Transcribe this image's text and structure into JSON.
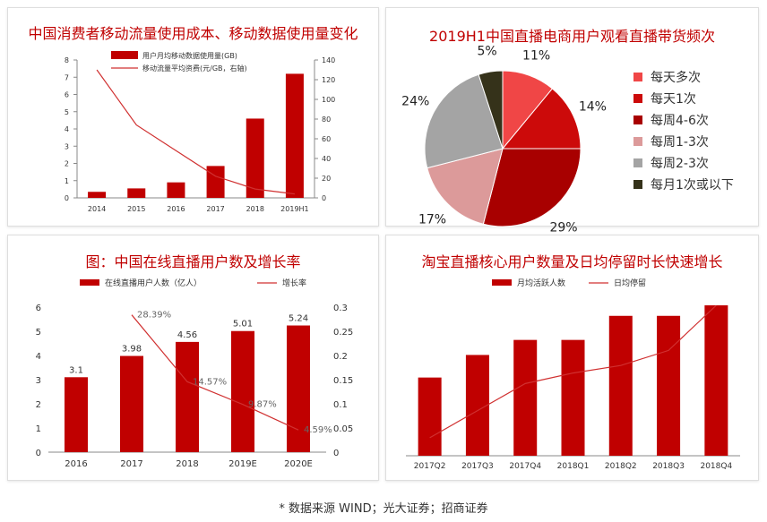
{
  "colors": {
    "red": "#c00000",
    "line": "#d03030",
    "axis": "#888888",
    "text": "#333333"
  },
  "source_note": "* 数据来源 WIND；光大证券；招商证券",
  "chart_data": [
    {
      "type": "bar",
      "title": "中国消费者移动流量使用成本、移动数据使用量变化",
      "categories": [
        "2014",
        "2015",
        "2016",
        "2017",
        "2018",
        "2019H1"
      ],
      "y_ticks": [
        "0",
        "1",
        "2",
        "3",
        "4",
        "5",
        "6",
        "7",
        "8"
      ],
      "y2_ticks": [
        "0",
        "20",
        "40",
        "60",
        "80",
        "100",
        "120",
        "140"
      ],
      "ylim": [
        0,
        8
      ],
      "y2lim": [
        0,
        140
      ],
      "series": [
        {
          "name": "用户月均移动数据使用量(GB)",
          "kind": "bar",
          "axis": "left",
          "values": [
            0.35,
            0.55,
            0.9,
            1.85,
            4.6,
            7.2
          ]
        },
        {
          "name": "移动流量平均资费(元/GB，右轴)",
          "kind": "line",
          "axis": "right",
          "values": [
            130,
            74,
            48,
            22,
            9,
            4
          ]
        }
      ],
      "legend_position": "top-right"
    },
    {
      "type": "pie",
      "title": "2019H1中国直播电商用户观看直播带货频次",
      "slices": [
        {
          "label": "每天多次",
          "value": 11,
          "text": "11%",
          "color": "#f04646"
        },
        {
          "label": "每天1次",
          "value": 14,
          "text": "14%",
          "color": "#cc0a0a"
        },
        {
          "label": "每周4-6次",
          "value": 29,
          "text": "29%",
          "color": "#a80000"
        },
        {
          "label": "每周1-3次",
          "value": 17,
          "text": "17%",
          "color": "#dc9a9a"
        },
        {
          "label": "每周2-3次",
          "value": 24,
          "text": "24%",
          "color": "#a4a4a4"
        },
        {
          "label": "每月1次或以下",
          "value": 5,
          "text": "5%",
          "color": "#35321a"
        }
      ],
      "legend_position": "right"
    },
    {
      "type": "bar",
      "title": "图：中国在线直播用户数及增长率",
      "categories": [
        "2016",
        "2017",
        "2018",
        "2019E",
        "2020E"
      ],
      "y_ticks": [
        "0",
        "1",
        "2",
        "3",
        "4",
        "5",
        "6"
      ],
      "y2_ticks": [
        "0",
        "0.05",
        "0.1",
        "0.15",
        "0.2",
        "0.25",
        "0.3"
      ],
      "ylim": [
        0,
        6
      ],
      "y2lim": [
        0,
        0.3
      ],
      "series": [
        {
          "name": "在线直播用户人数（亿人）",
          "kind": "bar",
          "axis": "left",
          "values": [
            3.1,
            3.98,
            4.56,
            5.01,
            5.24
          ],
          "labels": [
            "3.1",
            "3.98",
            "4.56",
            "5.01",
            "5.24"
          ]
        },
        {
          "name": "增长率",
          "kind": "line",
          "axis": "right",
          "values": [
            null,
            0.2839,
            0.1457,
            0.0987,
            0.0459
          ],
          "labels": [
            "",
            "28.39%",
            "14.57%",
            "9.87%",
            "4.59%"
          ]
        }
      ],
      "legend_position": "top"
    },
    {
      "type": "bar",
      "title": "淘宝直播核心用户数量及日均停留时长快速增长",
      "categories": [
        "2017Q2",
        "2017Q3",
        "2017Q4",
        "2018Q1",
        "2018Q2",
        "2018Q3",
        "2018Q4"
      ],
      "ylim": [
        0,
        100
      ],
      "y2lim": [
        0,
        100
      ],
      "series": [
        {
          "name": "月均活跃人数",
          "kind": "bar",
          "axis": "left",
          "values": [
            52,
            67,
            77,
            77,
            93,
            93,
            100
          ]
        },
        {
          "name": "日均停留",
          "kind": "line",
          "axis": "right",
          "values": [
            12,
            30,
            48,
            55,
            60,
            70,
            100
          ]
        }
      ],
      "legend_position": "top"
    }
  ]
}
